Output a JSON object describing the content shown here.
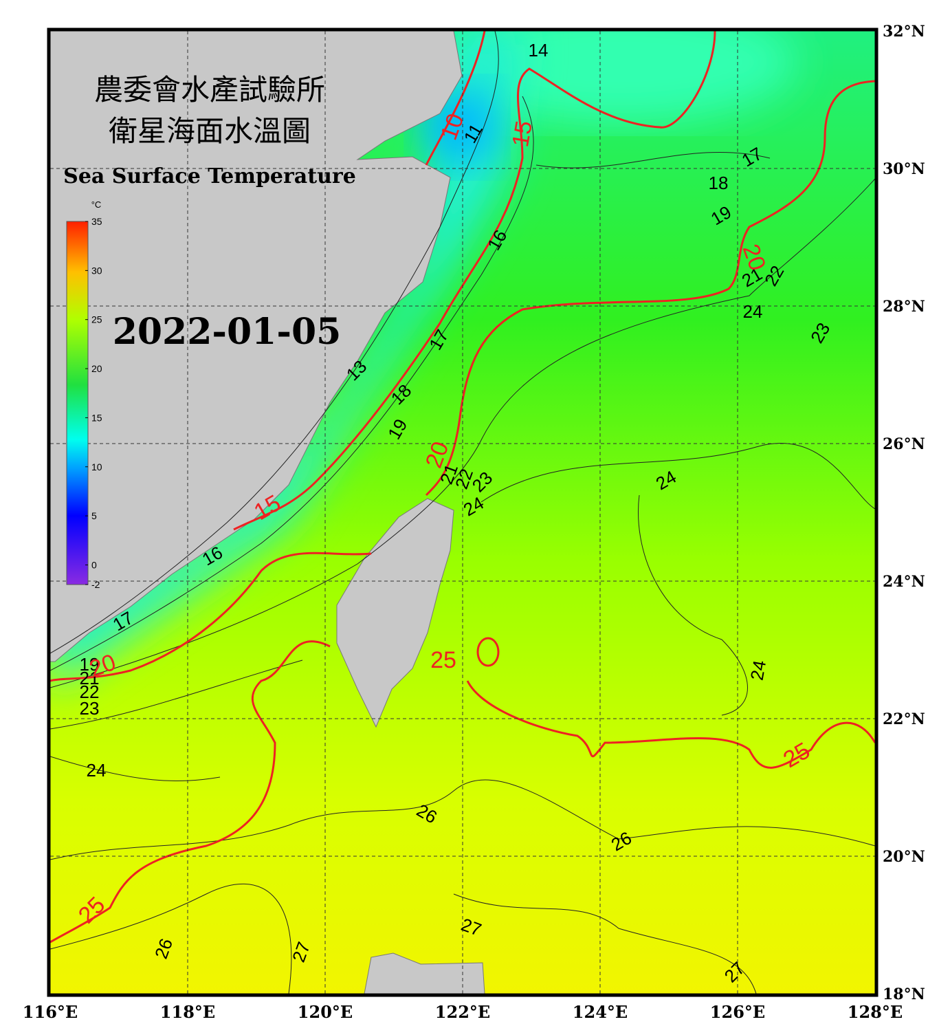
{
  "header": {
    "title_zh": [
      "農委會水產試驗所",
      "衛星海面水溫圖"
    ],
    "title_en": "Sea Surface Temperature",
    "date": "2022-01-05"
  },
  "colorbar": {
    "unit": "°C",
    "ticks": [
      35,
      30,
      25,
      20,
      15,
      10,
      5,
      0,
      -2
    ]
  },
  "lon_ticks": [
    {
      "value": 116,
      "label": "116°E"
    },
    {
      "value": 118,
      "label": "118°E"
    },
    {
      "value": 120,
      "label": "120°E"
    },
    {
      "value": 122,
      "label": "122°E"
    },
    {
      "value": 124,
      "label": "124°E"
    },
    {
      "value": 126,
      "label": "126°E"
    },
    {
      "value": 128,
      "label": "128°E"
    }
  ],
  "lat_ticks": [
    {
      "value": 32,
      "label": "32°N"
    },
    {
      "value": 30,
      "label": "30°N"
    },
    {
      "value": 28,
      "label": "28°N"
    },
    {
      "value": 26,
      "label": "26°N"
    },
    {
      "value": 24,
      "label": "24°N"
    },
    {
      "value": 22,
      "label": "22°N"
    },
    {
      "value": 20,
      "label": "20°N"
    },
    {
      "value": 18,
      "label": "18°N"
    }
  ],
  "isotherm_labels": [
    14,
    11,
    17,
    18,
    19,
    16,
    21,
    22,
    24,
    23,
    17,
    13,
    18,
    19,
    24,
    21,
    22,
    23,
    24,
    16,
    17,
    19,
    21,
    22,
    23,
    24,
    26,
    26,
    24,
    26,
    27,
    27,
    27
  ],
  "major_isotherm_labels": [
    10,
    15,
    20,
    20,
    15,
    20,
    25,
    25,
    25
  ]
}
